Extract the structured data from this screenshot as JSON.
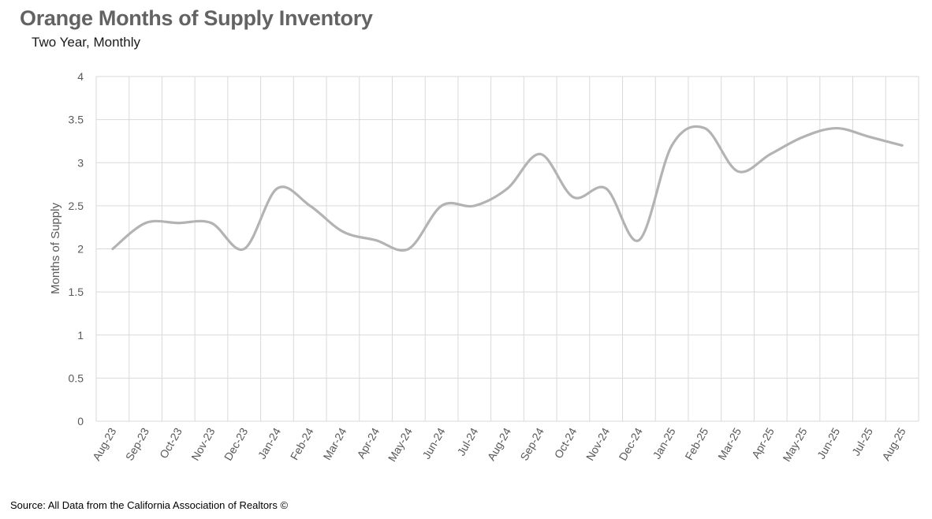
{
  "title": "Orange Months of Supply Inventory",
  "subtitle": "Two Year, Monthly",
  "source": "Source: All Data from the California Association of Realtors ©",
  "chart_data": {
    "type": "line",
    "title": "Orange Months of Supply Inventory",
    "subtitle": "Two Year, Monthly",
    "xlabel": "",
    "ylabel": "Months of Supply",
    "ylim": [
      0,
      4
    ],
    "yticks": [
      "0",
      "0.5",
      "1",
      "1.5",
      "2",
      "2.5",
      "3",
      "3.5",
      "4"
    ],
    "grid": true,
    "legend": "none",
    "smooth": true,
    "line_color": "#b3b3b3",
    "categories": [
      "Aug-23",
      "Sep-23",
      "Oct-23",
      "Nov-23",
      "Dec-23",
      "Jan-24",
      "Feb-24",
      "Mar-24",
      "Apr-24",
      "May-24",
      "Jun-24",
      "Jul-24",
      "Aug-24",
      "Sep-24",
      "Oct-24",
      "Nov-24",
      "Dec-24",
      "Jan-25",
      "Feb-25",
      "Mar-25",
      "Apr-25",
      "May-25",
      "Jun-25",
      "Jul-25",
      "Aug-25"
    ],
    "values": [
      2.0,
      2.3,
      2.3,
      2.3,
      2.0,
      2.7,
      2.5,
      2.2,
      2.1,
      2.0,
      2.5,
      2.5,
      2.7,
      3.1,
      2.6,
      2.7,
      2.1,
      3.2,
      3.4,
      2.9,
      3.1,
      3.3,
      3.4,
      3.3,
      3.2
    ]
  }
}
